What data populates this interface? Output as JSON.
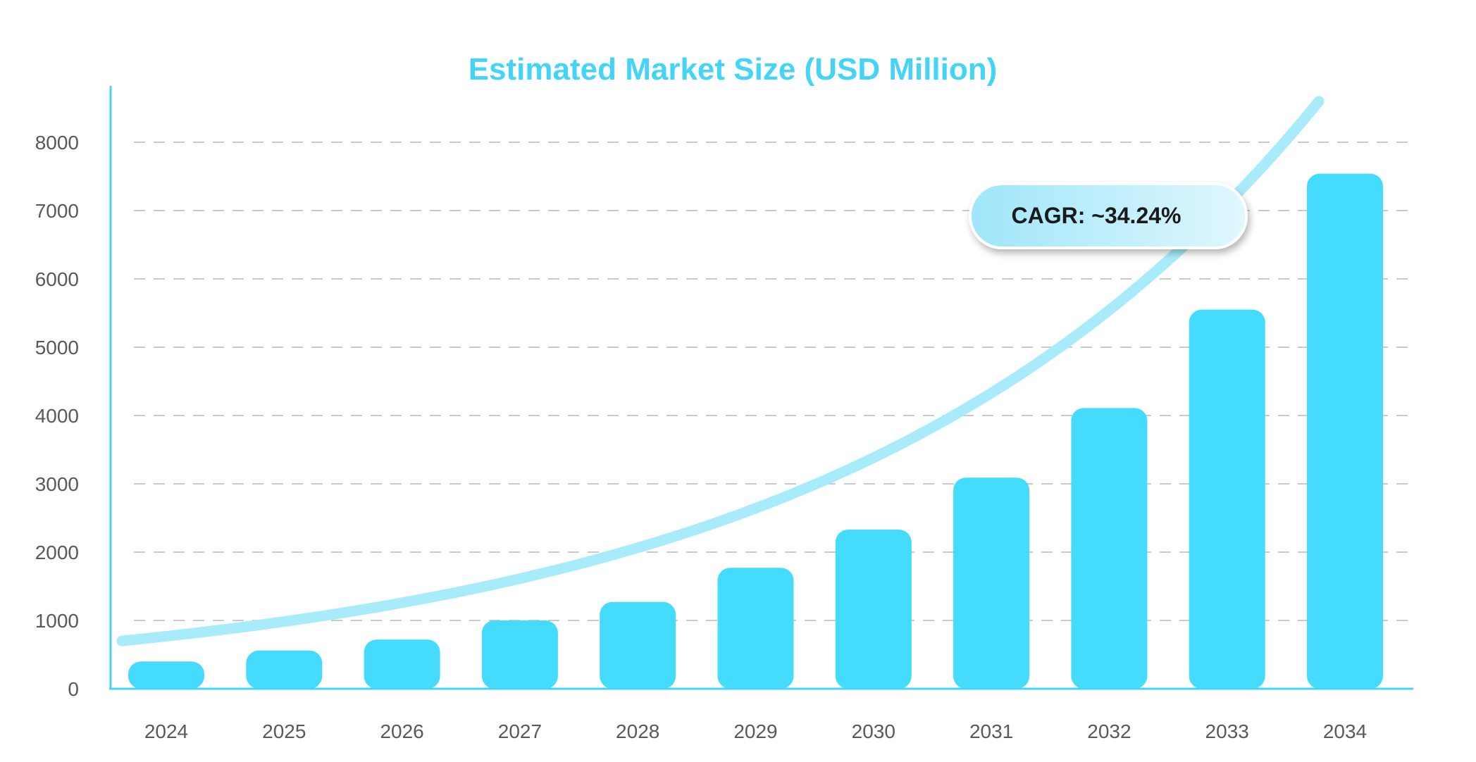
{
  "chart_data": {
    "type": "bar",
    "title": "Estimated Market Size (USD Million)",
    "xlabel": "",
    "ylabel": "",
    "categories": [
      "2024",
      "2025",
      "2026",
      "2027",
      "2028",
      "2029",
      "2030",
      "2031",
      "2032",
      "2033",
      "2034"
    ],
    "values": [
      400,
      560,
      720,
      1000,
      1270,
      1770,
      2330,
      3090,
      4110,
      5550,
      7540
    ],
    "yticks": [
      "0",
      "1000",
      "2000",
      "3000",
      "4000",
      "5000",
      "6000",
      "7000",
      "8000"
    ],
    "ylim": [
      0,
      8000
    ],
    "grid": true,
    "annotation": "CAGR: ~34.24%",
    "colors": {
      "bar": "#44dbfc",
      "title": "#44d4f8",
      "axis": "#44d4f8",
      "trend": "#a8ecfb",
      "grid": "#b8b8b8",
      "tick_text": "#595959",
      "badge_left": "#9fe6fa",
      "badge_right": "#e0f7fd"
    }
  }
}
